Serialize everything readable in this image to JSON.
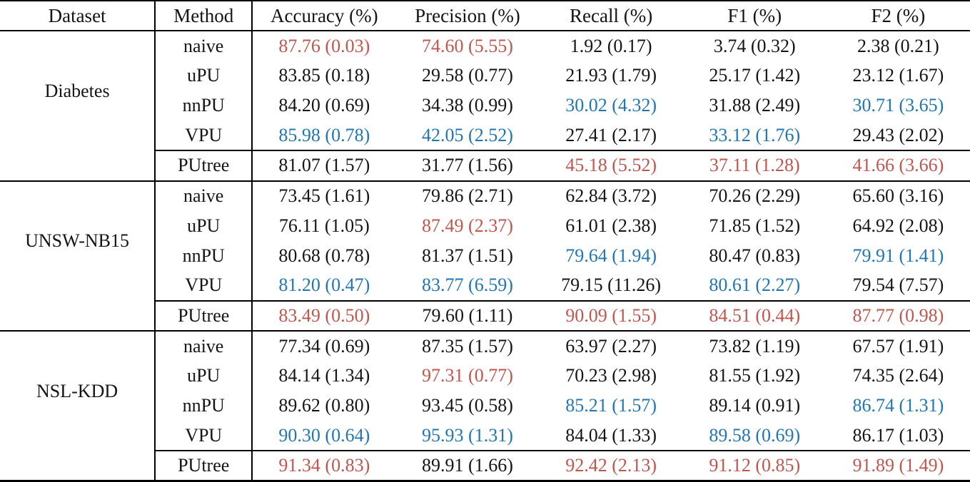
{
  "colors": {
    "red": "#c2564f",
    "blue": "#2077b4",
    "black": "#151515"
  },
  "table": {
    "headers": [
      "Dataset",
      "Method",
      "Accuracy (%)",
      "Precision (%)",
      "Recall (%)",
      "F1 (%)",
      "F2 (%)"
    ],
    "groups": [
      {
        "dataset": "Diabetes",
        "rows": [
          {
            "method": "naive",
            "values": [
              {
                "t": "87.76 (0.03)",
                "c": "red"
              },
              {
                "t": "74.60 (5.55)",
                "c": "red"
              },
              {
                "t": "1.92 (0.17)",
                "c": "black"
              },
              {
                "t": "3.74 (0.32)",
                "c": "black"
              },
              {
                "t": "2.38 (0.21)",
                "c": "black"
              }
            ]
          },
          {
            "method": "uPU",
            "values": [
              {
                "t": "83.85 (0.18)",
                "c": "black"
              },
              {
                "t": "29.58 (0.77)",
                "c": "black"
              },
              {
                "t": "21.93 (1.79)",
                "c": "black"
              },
              {
                "t": "25.17 (1.42)",
                "c": "black"
              },
              {
                "t": "23.12 (1.67)",
                "c": "black"
              }
            ]
          },
          {
            "method": "nnPU",
            "values": [
              {
                "t": "84.20 (0.69)",
                "c": "black"
              },
              {
                "t": "34.38 (0.99)",
                "c": "black"
              },
              {
                "t": "30.02 (4.32)",
                "c": "blue"
              },
              {
                "t": "31.88 (2.49)",
                "c": "black"
              },
              {
                "t": "30.71 (3.65)",
                "c": "blue"
              }
            ]
          },
          {
            "method": "VPU",
            "values": [
              {
                "t": "85.98 (0.78)",
                "c": "blue"
              },
              {
                "t": "42.05 (2.52)",
                "c": "blue"
              },
              {
                "t": "27.41 (2.17)",
                "c": "black"
              },
              {
                "t": "33.12 (1.76)",
                "c": "blue"
              },
              {
                "t": "29.43 (2.02)",
                "c": "black"
              }
            ]
          },
          {
            "method": "PUtree",
            "separator": true,
            "values": [
              {
                "t": "81.07 (1.57)",
                "c": "black"
              },
              {
                "t": "31.77 (1.56)",
                "c": "black"
              },
              {
                "t": "45.18 (5.52)",
                "c": "red"
              },
              {
                "t": "37.11 (1.28)",
                "c": "red"
              },
              {
                "t": "41.66 (3.66)",
                "c": "red"
              }
            ]
          }
        ]
      },
      {
        "dataset": "UNSW-NB15",
        "rows": [
          {
            "method": "naive",
            "values": [
              {
                "t": "73.45 (1.61)",
                "c": "black"
              },
              {
                "t": "79.86 (2.71)",
                "c": "black"
              },
              {
                "t": "62.84 (3.72)",
                "c": "black"
              },
              {
                "t": "70.26 (2.29)",
                "c": "black"
              },
              {
                "t": "65.60 (3.16)",
                "c": "black"
              }
            ]
          },
          {
            "method": "uPU",
            "values": [
              {
                "t": "76.11 (1.05)",
                "c": "black"
              },
              {
                "t": "87.49 (2.37)",
                "c": "red"
              },
              {
                "t": "61.01 (2.38)",
                "c": "black"
              },
              {
                "t": "71.85 (1.52)",
                "c": "black"
              },
              {
                "t": "64.92 (2.08)",
                "c": "black"
              }
            ]
          },
          {
            "method": "nnPU",
            "values": [
              {
                "t": "80.68 (0.78)",
                "c": "black"
              },
              {
                "t": "81.37 (1.51)",
                "c": "black"
              },
              {
                "t": "79.64 (1.94)",
                "c": "blue"
              },
              {
                "t": "80.47 (0.83)",
                "c": "black"
              },
              {
                "t": "79.91 (1.41)",
                "c": "blue"
              }
            ]
          },
          {
            "method": "VPU",
            "values": [
              {
                "t": "81.20 (0.47)",
                "c": "blue"
              },
              {
                "t": "83.77 (6.59)",
                "c": "blue"
              },
              {
                "t": "79.15 (11.26)",
                "c": "black"
              },
              {
                "t": "80.61 (2.27)",
                "c": "blue"
              },
              {
                "t": "79.54 (7.57)",
                "c": "black"
              }
            ]
          },
          {
            "method": "PUtree",
            "separator": true,
            "values": [
              {
                "t": "83.49 (0.50)",
                "c": "red"
              },
              {
                "t": "79.60 (1.11)",
                "c": "black"
              },
              {
                "t": "90.09 (1.55)",
                "c": "red"
              },
              {
                "t": "84.51 (0.44)",
                "c": "red"
              },
              {
                "t": "87.77 (0.98)",
                "c": "red"
              }
            ]
          }
        ]
      },
      {
        "dataset": "NSL-KDD",
        "rows": [
          {
            "method": "naive",
            "values": [
              {
                "t": "77.34 (0.69)",
                "c": "black"
              },
              {
                "t": "87.35 (1.57)",
                "c": "black"
              },
              {
                "t": "63.97 (2.27)",
                "c": "black"
              },
              {
                "t": "73.82 (1.19)",
                "c": "black"
              },
              {
                "t": "67.57 (1.91)",
                "c": "black"
              }
            ]
          },
          {
            "method": "uPU",
            "values": [
              {
                "t": "84.14 (1.34)",
                "c": "black"
              },
              {
                "t": "97.31 (0.77)",
                "c": "red"
              },
              {
                "t": "70.23 (2.98)",
                "c": "black"
              },
              {
                "t": "81.55 (1.92)",
                "c": "black"
              },
              {
                "t": "74.35 (2.64)",
                "c": "black"
              }
            ]
          },
          {
            "method": "nnPU",
            "values": [
              {
                "t": "89.62 (0.80)",
                "c": "black"
              },
              {
                "t": "93.45 (0.58)",
                "c": "black"
              },
              {
                "t": "85.21 (1.57)",
                "c": "blue"
              },
              {
                "t": "89.14 (0.91)",
                "c": "black"
              },
              {
                "t": "86.74 (1.31)",
                "c": "blue"
              }
            ]
          },
          {
            "method": "VPU",
            "values": [
              {
                "t": "90.30 (0.64)",
                "c": "blue"
              },
              {
                "t": "95.93 (1.31)",
                "c": "blue"
              },
              {
                "t": "84.04 (1.33)",
                "c": "black"
              },
              {
                "t": "89.58 (0.69)",
                "c": "blue"
              },
              {
                "t": "86.17 (1.03)",
                "c": "black"
              }
            ]
          },
          {
            "method": "PUtree",
            "separator": true,
            "values": [
              {
                "t": "91.34 (0.83)",
                "c": "red"
              },
              {
                "t": "89.91 (1.66)",
                "c": "black"
              },
              {
                "t": "92.42 (2.13)",
                "c": "red"
              },
              {
                "t": "91.12 (0.85)",
                "c": "red"
              },
              {
                "t": "91.89 (1.49)",
                "c": "red"
              }
            ]
          }
        ]
      }
    ]
  }
}
